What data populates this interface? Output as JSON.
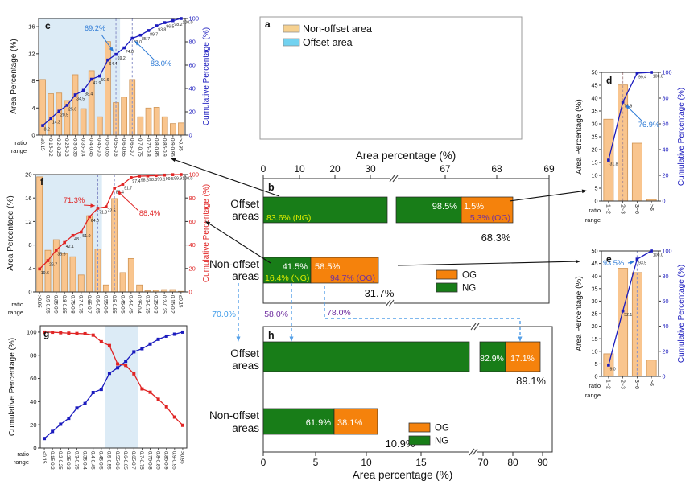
{
  "colors": {
    "bar_fill": "#f9c58e",
    "bar_edge": "#cf9455",
    "blue_line": "#1b1bbe",
    "red_line": "#e02424",
    "green": "#187d18",
    "orange": "#f5820c",
    "ng_text": "#dfee00",
    "og_text": "#7030a0",
    "shade": "#dcebf6",
    "map_tan": "#f6d190",
    "map_blue": "#72d2f0",
    "connector_blue": "#55a0e8",
    "annotation_blue": "#2e7bd6",
    "purple": "#7030a0",
    "label_blue": "#3d9be9",
    "white": "#ffffff",
    "dark": "#111111"
  },
  "panel_a": {
    "letter": "a",
    "legend": [
      {
        "label": "Non-offset area",
        "color_key": "map_tan"
      },
      {
        "label": "Offset area",
        "color_key": "map_blue"
      }
    ]
  },
  "panel_b": {
    "letter": "b",
    "axis_title": "Area percentage (%)",
    "tick_labels": [
      "0",
      "10",
      "20",
      "30",
      "67",
      "68",
      "69"
    ],
    "rows": [
      {
        "label_lines": [
          "Offset",
          "areas"
        ],
        "ng_pct": "98.5%",
        "og_pct": "1.5%",
        "ng_note": "83.6% (NG)",
        "og_note": "5.3% (OG)",
        "total": "68.3%"
      },
      {
        "label_lines": [
          "Non-offset",
          "areas"
        ],
        "ng_pct": "41.5%",
        "og_pct": "58.5%",
        "ng_note": "16.4% (NG)",
        "og_note": "94.7% (OG)",
        "total": "31.7%"
      }
    ],
    "legend": [
      {
        "label": "OG",
        "color_key": "orange"
      },
      {
        "label": "NG",
        "color_key": "green"
      }
    ]
  },
  "panel_h": {
    "letter": "h",
    "axis_title": "Area percentage (%)",
    "tick_labels": [
      "0",
      "5",
      "10",
      "15",
      "70",
      "80",
      "90"
    ],
    "rows": [
      {
        "label_lines": [
          "Offset",
          "areas"
        ],
        "ng_pct": "82.9%",
        "og_pct": "17.1%",
        "total": "89.1%"
      },
      {
        "label_lines": [
          "Non-offset",
          "areas"
        ],
        "ng_pct": "61.9%",
        "og_pct": "38.1%",
        "total": "10.9%"
      }
    ],
    "legend": [
      {
        "label": "OG",
        "color_key": "orange"
      },
      {
        "label": "NG",
        "color_key": "green"
      }
    ]
  },
  "connectors": [
    {
      "label": "70.0%",
      "color_key": "label_blue"
    },
    {
      "label": "58.0%",
      "color_key": "purple"
    },
    {
      "label": "78.0%",
      "color_key": "purple"
    }
  ],
  "chart_data": [
    {
      "id": "c",
      "type": "bar+line",
      "letter": "c",
      "categories": [
        "≤0.15",
        "0.15-0.2",
        "0.2-0.25",
        "0.25-0.3",
        "0.3-0.35",
        "0.35-0.4",
        "0.4-0.45",
        "0.45-0.5",
        "0.5-0.55",
        "0.55-0.6",
        "0.6-0.65",
        "0.65-0.7",
        "0.7-0.75",
        "0.75-0.8",
        "0.8-0.85",
        "0.85-0.9",
        "0.9-0.95",
        ">0.95"
      ],
      "bars": [
        8.2,
        6.1,
        6.2,
        5.1,
        8.9,
        3.9,
        9.5,
        2.7,
        13.8,
        4.8,
        5.6,
        8.2,
        2.7,
        4.0,
        4.1,
        2.7,
        1.7,
        1.8
      ],
      "cumulative": [
        8.2,
        14.3,
        20.5,
        25.6,
        34.5,
        38.4,
        47.9,
        50.6,
        64.4,
        69.2,
        74.8,
        83.0,
        85.7,
        89.7,
        93.8,
        96.5,
        98.2,
        100.0
      ],
      "ylabel_left": "Area Percentage (%)",
      "ylabel_right": "Cumulative Percentage (%)",
      "x_corner_label": [
        "ratio",
        "range"
      ],
      "yticks_left": [
        0,
        4,
        8,
        12,
        16
      ],
      "ylim_left": [
        0,
        17.2
      ],
      "yticks_right": [
        0,
        20,
        40,
        60,
        80,
        100
      ],
      "line_color_key": "blue_line",
      "shade_through_index": 9,
      "dashed_indices": [
        9,
        11
      ],
      "annotations": [
        {
          "text": "69.2%",
          "index": 9
        },
        {
          "text": "83.0%",
          "index": 11
        }
      ]
    },
    {
      "id": "f",
      "type": "bar+line",
      "letter": "f",
      "categories": [
        ">0.95",
        "0.9-0.95",
        "0.85-0.9",
        "0.8-0.85",
        "0.75-0.8",
        "0.7-0.75",
        "0.65-0.7",
        "0.6-0.65",
        "0.55-0.6",
        "0.5-0.55",
        "0.45-0.5",
        "0.4-0.45",
        "0.35-0.4",
        "0.3-0.35",
        "0.25-0.3",
        "0.2-0.25",
        "0.15-0.2",
        "≤0.15"
      ],
      "bars": [
        19.6,
        7.1,
        8.9,
        6.5,
        6.0,
        2.9,
        13.0,
        7.3,
        1.2,
        15.9,
        3.3,
        5.7,
        1.2,
        0.2,
        0.3,
        0.4,
        0.4,
        0.1
      ],
      "cumulative": [
        19.6,
        26.7,
        35.6,
        42.1,
        48.1,
        51.0,
        64.0,
        71.3,
        72.5,
        88.4,
        91.7,
        97.4,
        98.6,
        98.8,
        99.1,
        99.5,
        99.9,
        100.0
      ],
      "ylabel_left": "Area Percentage (%)",
      "ylabel_right": "Cumulative Percentage (%)",
      "x_corner_label": [
        "ratio",
        "range"
      ],
      "yticks_left": [
        0,
        4,
        8,
        12,
        16,
        20
      ],
      "ylim_left": [
        0,
        20
      ],
      "yticks_right": [
        0,
        20,
        40,
        60,
        80,
        100
      ],
      "line_color_key": "red_line",
      "shade_through_index": 7,
      "dashed_indices": [
        7,
        9
      ],
      "annotations": [
        {
          "text": "71.3%",
          "index": 7
        },
        {
          "text": "88.4%",
          "index": 9
        }
      ]
    },
    {
      "id": "g",
      "type": "line",
      "letter": "g",
      "categories": [
        "≤0.15",
        "0.15-0.2",
        "0.2-0.25",
        "0.25-0.3",
        "0.3-0.35",
        "0.35-0.4",
        "0.4-0.45",
        "0.45-0.5",
        "0.5-0.55",
        "0.55-0.6",
        "0.6-0.65",
        "0.65-0.7",
        "0.7-0.75",
        "0.75-0.8",
        "0.8-0.85",
        "0.85-0.9",
        "0.9-0.95",
        ">0.95"
      ],
      "ylabel_left": "Cumulative Percentage (%)",
      "x_corner_label": [
        "ratio",
        "range"
      ],
      "yticks_left": [
        0,
        20,
        40,
        60,
        80,
        100
      ],
      "band_indices": [
        8,
        11
      ],
      "series": [
        {
          "name": "offset-cumulative",
          "color_key": "blue_line",
          "values": [
            8.2,
            14.3,
            20.5,
            25.6,
            34.5,
            38.4,
            47.9,
            50.6,
            64.4,
            69.2,
            74.8,
            83.0,
            85.7,
            89.7,
            93.8,
            96.5,
            98.2,
            100.0
          ]
        },
        {
          "name": "non-offset-cumulative",
          "color_key": "red_line",
          "values": [
            100.0,
            99.9,
            99.5,
            99.1,
            98.8,
            98.6,
            97.4,
            91.7,
            88.4,
            72.5,
            71.3,
            64.0,
            51.0,
            48.1,
            42.1,
            35.6,
            26.7,
            19.6
          ]
        }
      ]
    },
    {
      "id": "d",
      "type": "bar+line",
      "letter": "d",
      "categories": [
        "1~2",
        "2~3",
        "3~6",
        ">6"
      ],
      "bars": [
        31.8,
        45.1,
        22.5,
        0.6
      ],
      "cumulative": [
        31.8,
        76.9,
        99.4,
        100.0
      ],
      "ylabel_left": "Area Percentage (%)",
      "ylabel_right": "Cumulative Percentage (%)",
      "x_corner_label": [
        "ratio",
        "range"
      ],
      "yticks_left": [
        0,
        5,
        10,
        15,
        20,
        25,
        30,
        35,
        40,
        45,
        50
      ],
      "ylim_left": [
        0,
        50
      ],
      "yticks_right": [
        0,
        20,
        40,
        60,
        80,
        100
      ],
      "line_color_key": "blue_line",
      "dashed_indices": [
        1
      ],
      "annotations": [
        {
          "text": "76.9%",
          "index": 1
        }
      ]
    },
    {
      "id": "e",
      "type": "bar+line",
      "letter": "e",
      "categories": [
        "1~2",
        "2~3",
        "3~6",
        ">6"
      ],
      "bars": [
        9.0,
        43.1,
        41.4,
        6.5
      ],
      "cumulative": [
        9.0,
        52.1,
        93.5,
        100.0
      ],
      "ylabel_left": "Area Percentage (%)",
      "ylabel_right": "Cumulative Percentage (%)",
      "x_corner_label": [
        "ratio",
        "range"
      ],
      "yticks_left": [
        0,
        5,
        10,
        15,
        20,
        25,
        30,
        35,
        40,
        45,
        50
      ],
      "ylim_left": [
        0,
        50
      ],
      "yticks_right": [
        0,
        20,
        40,
        60,
        80,
        100
      ],
      "line_color_key": "blue_line",
      "dashed_indices": [
        2
      ],
      "annotations": [
        {
          "text": "93.5%",
          "index": 2
        }
      ]
    }
  ]
}
